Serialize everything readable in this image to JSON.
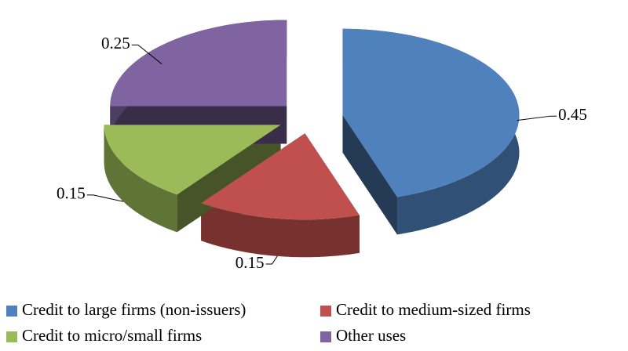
{
  "chart_data": {
    "type": "pie",
    "categories": [
      "Credit to large firms (non-issuers)",
      "Credit to medium-sized firms",
      "Credit to micro/small firms",
      "Other uses"
    ],
    "values": [
      0.45,
      0.15,
      0.15,
      0.25
    ],
    "colors": [
      "#4f81bd",
      "#c0504d",
      "#9bbb59",
      "#8064a2"
    ],
    "legend": "bottom"
  }
}
